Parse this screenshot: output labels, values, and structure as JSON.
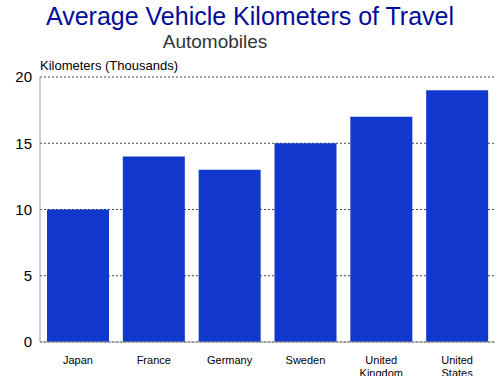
{
  "chart_data": {
    "type": "bar",
    "title": "Average Vehicle Kilometers of Travel",
    "subtitle": "Automobiles",
    "y_label": "Kilometers (Thousands)",
    "categories": [
      "Japan",
      "France",
      "Germany",
      "Sweden",
      "United Kingdom",
      "United States"
    ],
    "values": [
      10,
      14,
      13,
      15,
      17,
      19
    ],
    "color": "#1038cc",
    "ylim": [
      0,
      20
    ],
    "yticks": [
      0,
      5,
      10,
      15,
      20
    ],
    "grid": true
  }
}
